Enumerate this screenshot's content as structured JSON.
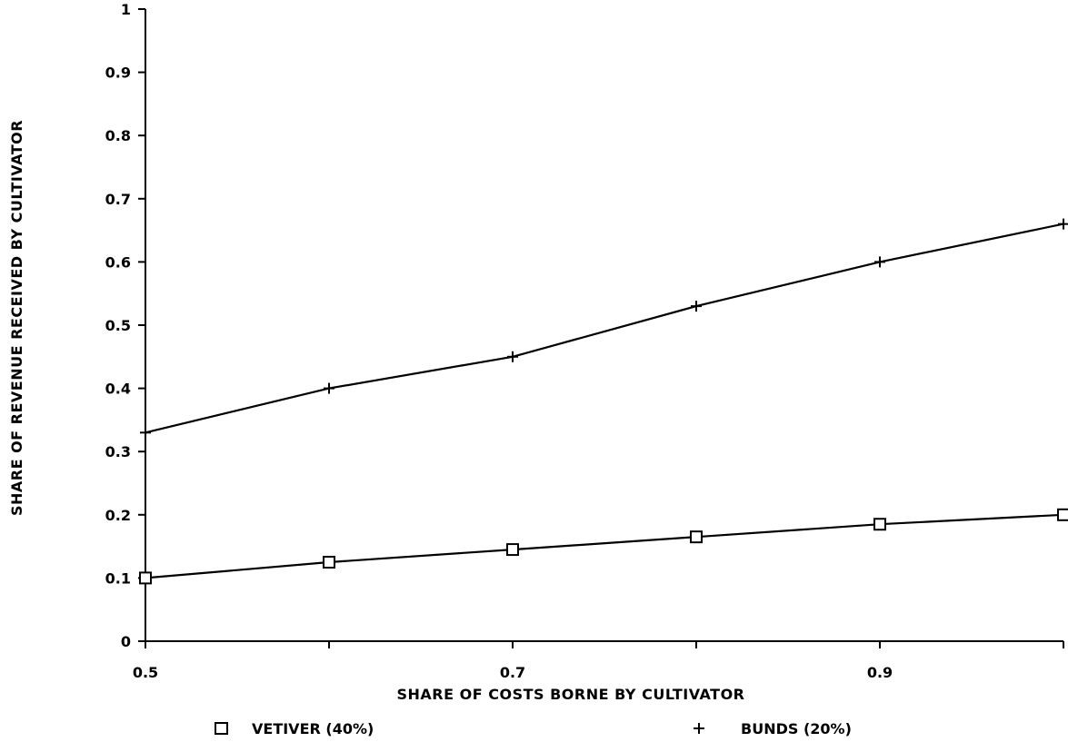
{
  "chart_data": {
    "type": "line",
    "title": "",
    "xlabel": "SHARE OF COSTS BORNE BY CULTIVATOR",
    "ylabel": "SHARE OF REVENUE RECEIVED BY CULTIVATOR",
    "xlim": [
      0.5,
      1.0
    ],
    "ylim": [
      0,
      1
    ],
    "xticks": [
      "0.5",
      "0.7",
      "0.9"
    ],
    "yticks": [
      "0",
      "0.1",
      "0.2",
      "0.3",
      "0.4",
      "0.5",
      "0.6",
      "0.7",
      "0.8",
      "0.9",
      "1"
    ],
    "grid": false,
    "legend_position": "bottom",
    "x": [
      0.5,
      0.6,
      0.7,
      0.8,
      0.9,
      1.0
    ],
    "series": [
      {
        "name": "VETIVER (40%)",
        "marker": "square",
        "marker_symbol": "□",
        "values": [
          0.1,
          0.125,
          0.145,
          0.165,
          0.185,
          0.2
        ]
      },
      {
        "name": "BUNDS (20%)",
        "marker": "plus",
        "marker_symbol": "+",
        "values": [
          0.33,
          0.4,
          0.45,
          0.53,
          0.6,
          0.66
        ]
      }
    ],
    "colors": {
      "line": "#000000",
      "background": "#ffffff"
    }
  }
}
